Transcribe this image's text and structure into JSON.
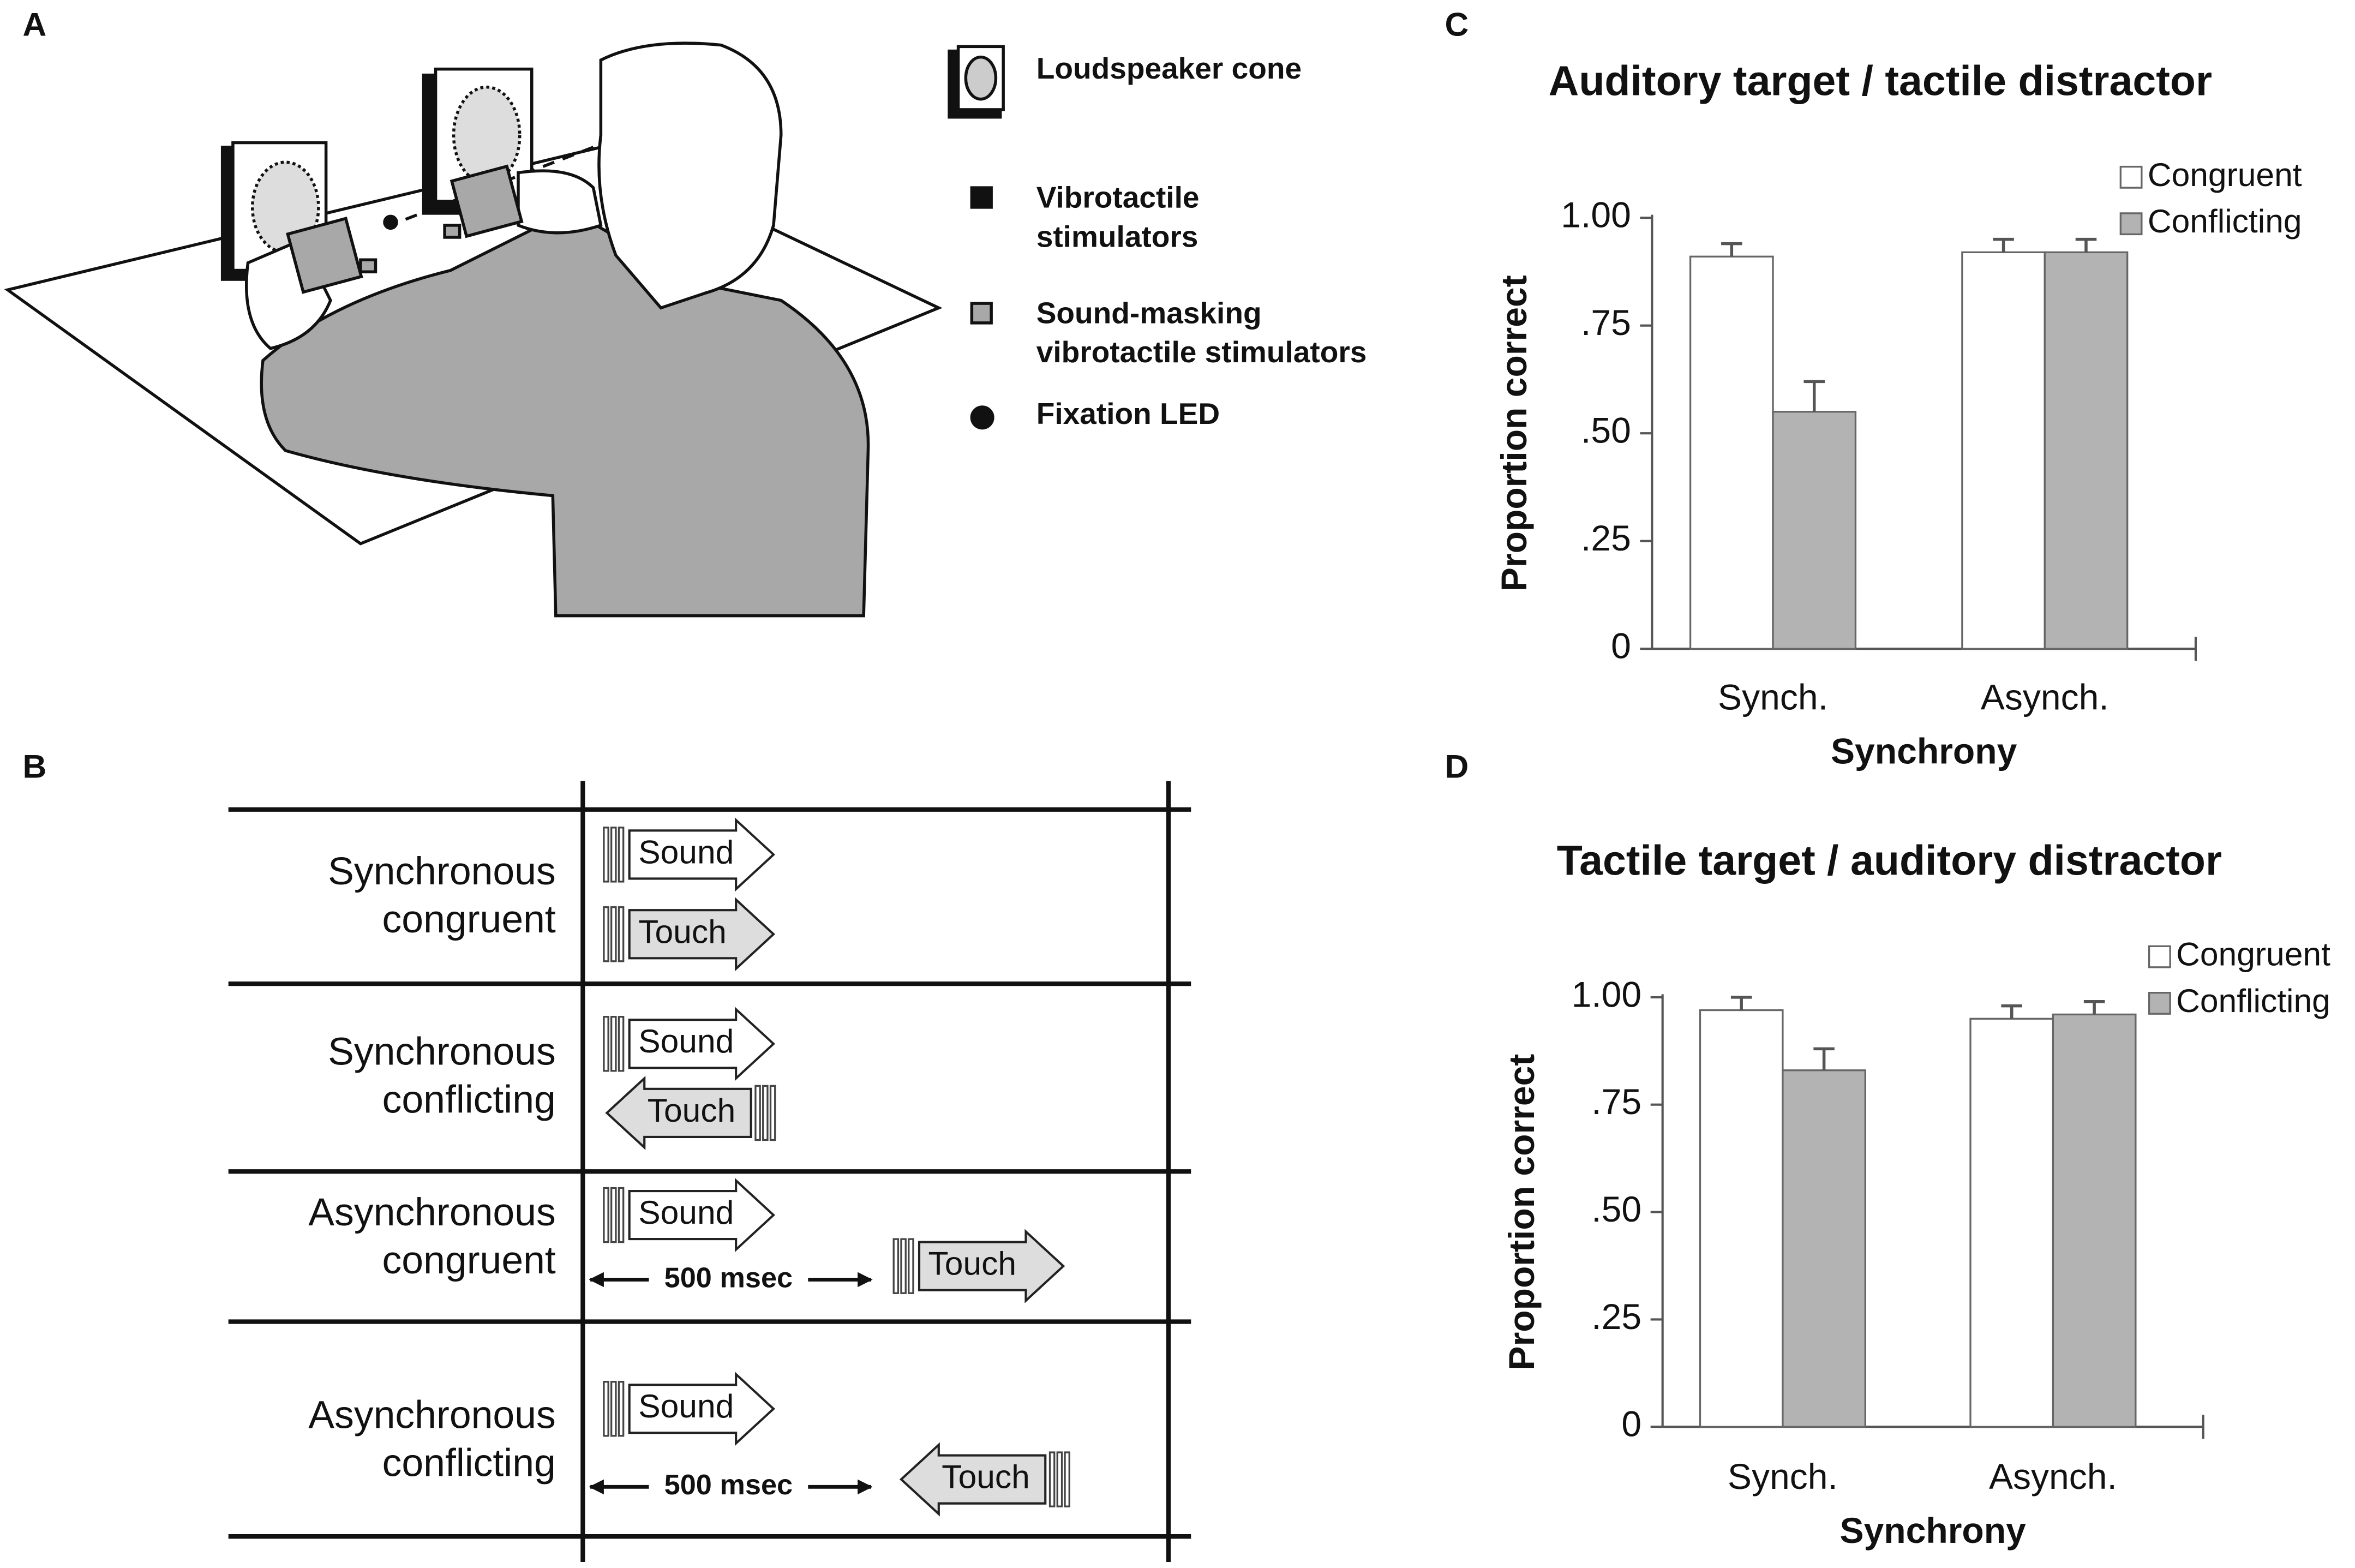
{
  "panel_labels": [
    "A",
    "B",
    "C",
    "D"
  ],
  "setup_legend": [
    {
      "lines": [
        "Loudspeaker cone"
      ]
    },
    {
      "lines": [
        "Vibrotactile",
        "stimulators"
      ]
    },
    {
      "lines": [
        "Sound-masking",
        "vibrotactile stimulators"
      ]
    },
    {
      "lines": [
        "Fixation LED"
      ]
    }
  ],
  "timeline": {
    "rows": [
      {
        "label": [
          "Synchronous",
          "congruent"
        ],
        "sound": "Sound",
        "touch": "Touch",
        "touch_direction": "right"
      },
      {
        "label": [
          "Synchronous",
          "conflicting"
        ],
        "sound": "Sound",
        "touch": "Touch",
        "touch_direction": "left"
      },
      {
        "label": [
          "Asynchronous",
          "congruent"
        ],
        "sound": "Sound",
        "touch": "Touch",
        "touch_direction": "right",
        "delay": "500 msec"
      },
      {
        "label": [
          "Asynchronous",
          "conflicting"
        ],
        "sound": "Sound",
        "touch": "Touch",
        "touch_direction": "left",
        "delay": "500 msec"
      }
    ]
  },
  "chart_data": [
    {
      "type": "bar",
      "title": "Auditory target / tactile distractor",
      "categories": [
        "Synch.",
        "Asynch."
      ],
      "xlabel": "Synchrony",
      "ylabel": "Proportion correct",
      "series": [
        {
          "name": "Congruent",
          "color": "#ffffff",
          "values": [
            0.91,
            0.92
          ],
          "errors": [
            0.03,
            0.03
          ]
        },
        {
          "name": "Conflicting",
          "color": "#b3b3b3",
          "values": [
            0.55,
            0.92
          ],
          "errors": [
            0.07,
            0.03
          ]
        }
      ],
      "ylim": [
        0,
        1
      ],
      "yticks": [
        0,
        {
          "value": 0.25,
          "label": ".25"
        },
        {
          "value": 0.5,
          "label": ".50"
        },
        {
          "value": 0.75,
          "label": ".75"
        },
        {
          "value": 1,
          "label": "1.00"
        }
      ],
      "legend": "upper right"
    },
    {
      "type": "bar",
      "title": "Tactile target / auditory distractor",
      "categories": [
        "Synch.",
        "Asynch."
      ],
      "xlabel": "Synchrony",
      "ylabel": "Proportion correct",
      "series": [
        {
          "name": "Congruent",
          "color": "#ffffff",
          "values": [
            0.97,
            0.95
          ],
          "errors": [
            0.03,
            0.03
          ]
        },
        {
          "name": "Conflicting",
          "color": "#b3b3b3",
          "values": [
            0.83,
            0.96
          ],
          "errors": [
            0.05,
            0.03
          ]
        }
      ],
      "ylim": [
        0,
        1
      ],
      "yticks": [
        0,
        {
          "value": 0.25,
          "label": ".25"
        },
        {
          "value": 0.5,
          "label": ".50"
        },
        {
          "value": 0.75,
          "label": ".75"
        },
        {
          "value": 1,
          "label": "1.00"
        }
      ],
      "legend": "upper right"
    }
  ]
}
